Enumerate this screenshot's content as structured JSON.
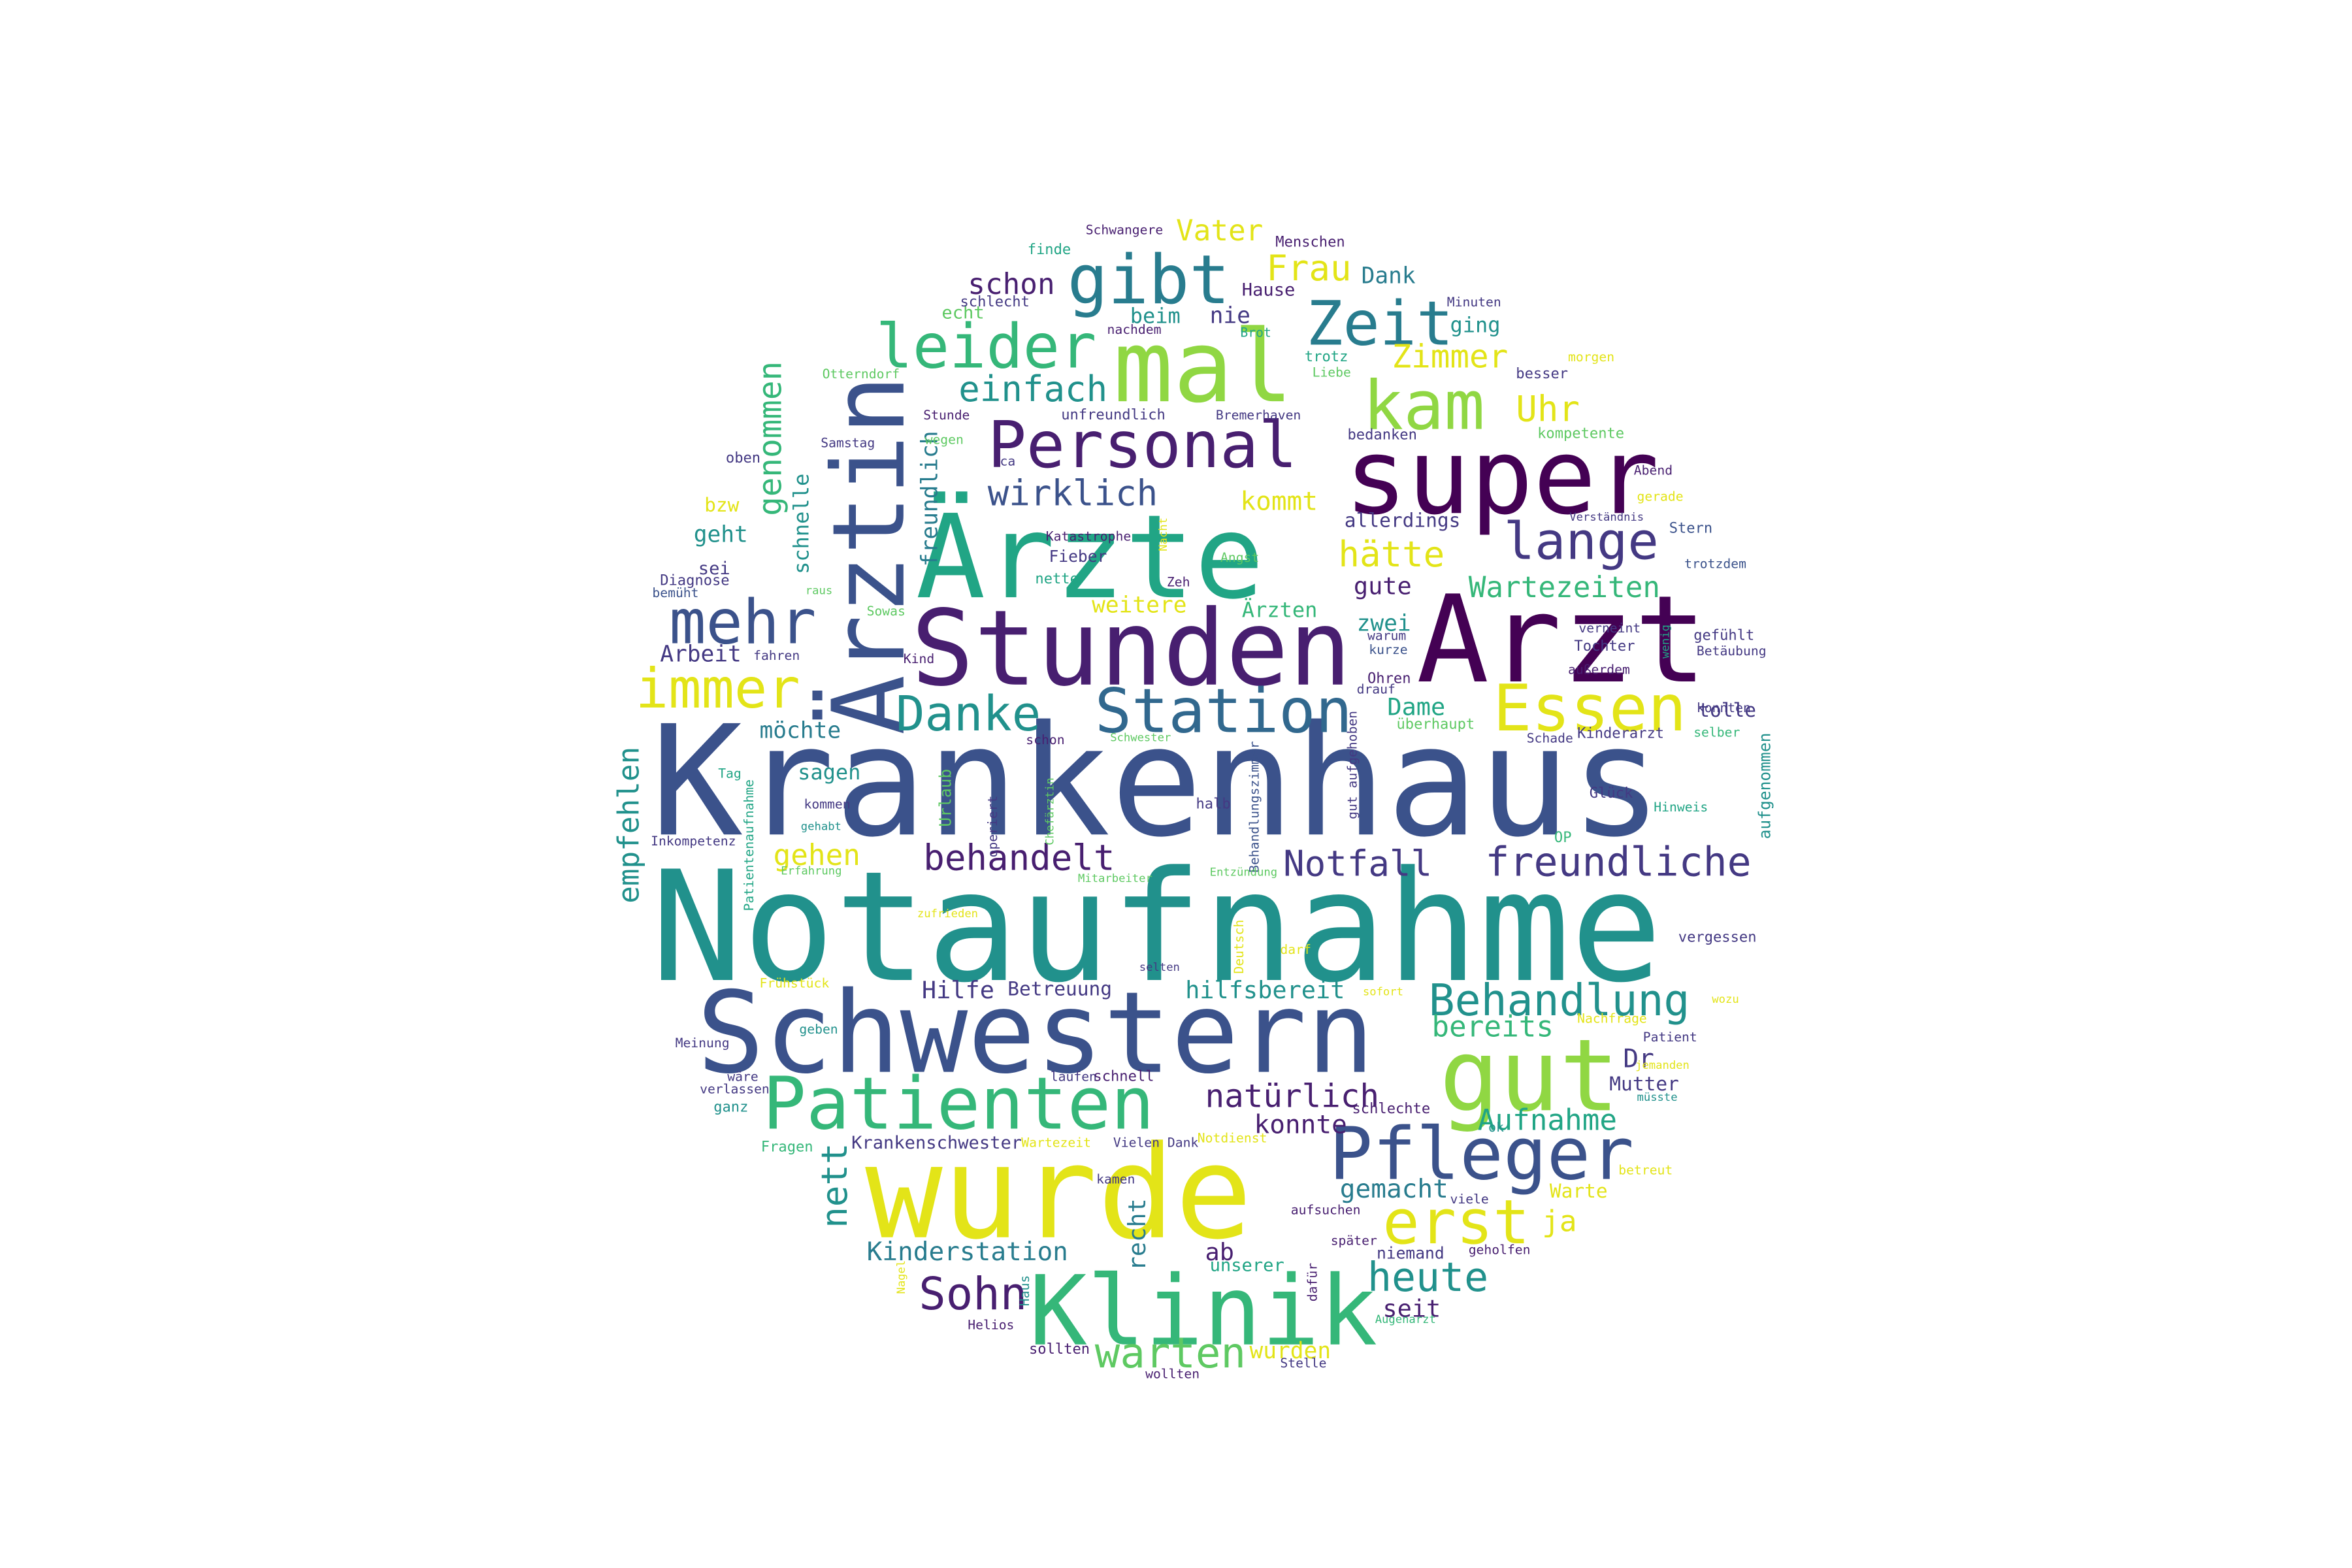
{
  "word_cloud": {
    "colors": {
      "yellow": "#e3e418",
      "lime": "#90d743",
      "lightgreen": "#5ec962",
      "green": "#35b779",
      "seagreen": "#21a585",
      "teal": "#21918c",
      "cyan": "#287c8e",
      "blue": "#31688e",
      "navy": "#3b528b",
      "indigo": "#443983",
      "purple": "#481f70",
      "dark": "#440154"
    },
    "words": [
      {
        "text": "Notaufnahme",
        "color": "teal"
      },
      {
        "text": "Krankenhaus",
        "color": "navy"
      },
      {
        "text": "Schwestern",
        "color": "navy"
      },
      {
        "text": "wurde",
        "color": "yellow"
      },
      {
        "text": "Ärzte",
        "color": "seagreen"
      },
      {
        "text": "Arzt",
        "color": "dark"
      },
      {
        "text": "Stunden",
        "color": "purple"
      },
      {
        "text": "super",
        "color": "dark"
      },
      {
        "text": "Ärztin",
        "color": "navy"
      },
      {
        "text": "Klinik",
        "color": "green"
      },
      {
        "text": "mal",
        "color": "lime"
      },
      {
        "text": "gut",
        "color": "lime"
      },
      {
        "text": "Patienten",
        "color": "green"
      },
      {
        "text": "Pfleger",
        "color": "navy"
      },
      {
        "text": "Personal",
        "color": "purple"
      },
      {
        "text": "Station",
        "color": "blue"
      },
      {
        "text": "gibt",
        "color": "cyan"
      },
      {
        "text": "kam",
        "color": "lime"
      },
      {
        "text": "Essen",
        "color": "yellow"
      },
      {
        "text": "Zeit",
        "color": "cyan"
      },
      {
        "text": "leider",
        "color": "green"
      },
      {
        "text": "mehr",
        "color": "navy"
      },
      {
        "text": "immer",
        "color": "yellow"
      },
      {
        "text": "Danke",
        "color": "teal"
      },
      {
        "text": "lange",
        "color": "indigo"
      },
      {
        "text": "Behandlung",
        "color": "teal"
      },
      {
        "text": "erst",
        "color": "yellow"
      },
      {
        "text": "Sohn",
        "color": "purple"
      },
      {
        "text": "heute",
        "color": "teal"
      },
      {
        "text": "warten",
        "color": "lightgreen"
      },
      {
        "text": "freundliche",
        "color": "indigo"
      },
      {
        "text": "Notfall",
        "color": "indigo"
      },
      {
        "text": "behandelt",
        "color": "purple"
      },
      {
        "text": "einfach",
        "color": "teal"
      },
      {
        "text": "wirklich",
        "color": "navy"
      },
      {
        "text": "Uhr",
        "color": "yellow"
      },
      {
        "text": "Frau",
        "color": "yellow"
      },
      {
        "text": "Vater",
        "color": "yellow"
      },
      {
        "text": "Zimmer",
        "color": "yellow"
      },
      {
        "text": "natürlich",
        "color": "purple"
      },
      {
        "text": "nett",
        "color": "teal"
      },
      {
        "text": "genommen",
        "color": "green"
      },
      {
        "text": "empfehlen",
        "color": "teal"
      },
      {
        "text": "hätte",
        "color": "yellow"
      },
      {
        "text": "kommt",
        "color": "yellow"
      },
      {
        "text": "Wartezeiten",
        "color": "green"
      },
      {
        "text": "schon",
        "color": "purple"
      },
      {
        "text": "Aufnahme",
        "color": "seagreen"
      },
      {
        "text": "Kinderstation",
        "color": "cyan"
      },
      {
        "text": "gehen",
        "color": "yellow"
      },
      {
        "text": "Hilfe",
        "color": "indigo"
      },
      {
        "text": "hilfsbereit",
        "color": "teal"
      },
      {
        "text": "bereits",
        "color": "green"
      },
      {
        "text": "gemacht",
        "color": "cyan"
      },
      {
        "text": "konnte",
        "color": "purple"
      },
      {
        "text": "wurden",
        "color": "yellow"
      },
      {
        "text": "ja",
        "color": "yellow"
      },
      {
        "text": "Dr",
        "color": "indigo"
      },
      {
        "text": "seit",
        "color": "purple"
      },
      {
        "text": "ab",
        "color": "purple"
      },
      {
        "text": "recht",
        "color": "cyan"
      },
      {
        "text": "möchte",
        "color": "cyan"
      },
      {
        "text": "freundlich",
        "color": "cyan"
      },
      {
        "text": "Dame",
        "color": "seagreen"
      },
      {
        "text": "gute",
        "color": "purple"
      },
      {
        "text": "Dank",
        "color": "cyan"
      },
      {
        "text": "Betreuung",
        "color": "indigo"
      },
      {
        "text": "weitere",
        "color": "yellow"
      },
      {
        "text": "Ärzten",
        "color": "green"
      },
      {
        "text": "Arbeit",
        "color": "indigo"
      },
      {
        "text": "geht",
        "color": "teal"
      },
      {
        "text": "schnelle",
        "color": "teal"
      },
      {
        "text": "zwei",
        "color": "teal"
      },
      {
        "text": "sagen",
        "color": "teal"
      },
      {
        "text": "beim",
        "color": "teal"
      },
      {
        "text": "nie",
        "color": "indigo"
      },
      {
        "text": "ging",
        "color": "teal"
      },
      {
        "text": "Hause",
        "color": "purple"
      },
      {
        "text": "allerdings",
        "color": "indigo"
      },
      {
        "text": "Mutter",
        "color": "indigo"
      },
      {
        "text": "Warte",
        "color": "yellow"
      },
      {
        "text": "tolle",
        "color": "indigo"
      },
      {
        "text": "Krankenschwester",
        "color": "indigo"
      },
      {
        "text": "unserer",
        "color": "seagreen"
      },
      {
        "text": "niemand",
        "color": "indigo"
      },
      {
        "text": "bzw",
        "color": "yellow"
      },
      {
        "text": "sei",
        "color": "indigo"
      },
      {
        "text": "Urlaub",
        "color": "lightgreen"
      },
      {
        "text": "Menschen",
        "color": "purple"
      },
      {
        "text": "finde",
        "color": "seagreen"
      },
      {
        "text": "Schwangere",
        "color": "purple"
      },
      {
        "text": "echt",
        "color": "lightgreen"
      },
      {
        "text": "schlecht",
        "color": "indigo"
      },
      {
        "text": "nachdem",
        "color": "purple"
      },
      {
        "text": "Brot",
        "color": "seagreen"
      },
      {
        "text": "Minuten",
        "color": "indigo"
      },
      {
        "text": "trotz",
        "color": "seagreen"
      },
      {
        "text": "Liebe",
        "color": "lightgreen"
      },
      {
        "text": "morgen",
        "color": "yellow"
      },
      {
        "text": "besser",
        "color": "indigo"
      },
      {
        "text": "Otterndorf",
        "color": "lightgreen"
      },
      {
        "text": "Stunde",
        "color": "purple"
      },
      {
        "text": "unfreundlich",
        "color": "indigo"
      },
      {
        "text": "Bremerhaven",
        "color": "indigo"
      },
      {
        "text": "kompetente",
        "color": "lightgreen"
      },
      {
        "text": "wegen",
        "color": "lightgreen"
      },
      {
        "text": "Samstag",
        "color": "indigo"
      },
      {
        "text": "ca",
        "color": "indigo"
      },
      {
        "text": "bedanken",
        "color": "indigo"
      },
      {
        "text": "oben",
        "color": "indigo"
      },
      {
        "text": "Abend",
        "color": "purple"
      },
      {
        "text": "gerade",
        "color": "yellow"
      },
      {
        "text": "Verständnis",
        "color": "indigo"
      },
      {
        "text": "Stern",
        "color": "navy"
      },
      {
        "text": "trotzdem",
        "color": "navy"
      },
      {
        "text": "Katastrophe",
        "color": "purple"
      },
      {
        "text": "Nacht",
        "color": "yellow"
      },
      {
        "text": "Angst",
        "color": "lightgreen"
      },
      {
        "text": "Fieber",
        "color": "indigo"
      },
      {
        "text": "nette",
        "color": "seagreen"
      },
      {
        "text": "Zeh",
        "color": "purple"
      },
      {
        "text": "Diagnose",
        "color": "indigo"
      },
      {
        "text": "bemüht",
        "color": "navy"
      },
      {
        "text": "raus",
        "color": "lightgreen"
      },
      {
        "text": "Sowas",
        "color": "lightgreen"
      },
      {
        "text": "fahren",
        "color": "indigo"
      },
      {
        "text": "Kind",
        "color": "purple"
      },
      {
        "text": "verneint",
        "color": "indigo"
      },
      {
        "text": "warum",
        "color": "indigo"
      },
      {
        "text": "kurze",
        "color": "navy"
      },
      {
        "text": "Tochter",
        "color": "indigo"
      },
      {
        "text": "außerdem",
        "color": "purple"
      },
      {
        "text": "gefühlt",
        "color": "indigo"
      },
      {
        "text": "Betäubung",
        "color": "indigo"
      },
      {
        "text": "wenig",
        "color": "seagreen"
      },
      {
        "text": "Ohren",
        "color": "purple"
      },
      {
        "text": "drauf",
        "color": "indigo"
      },
      {
        "text": "überhaupt",
        "color": "lightgreen"
      },
      {
        "text": "konnten",
        "color": "indigo"
      },
      {
        "text": "selber",
        "color": "green"
      },
      {
        "text": "Tag",
        "color": "seagreen"
      },
      {
        "text": "schon",
        "color": "purple"
      },
      {
        "text": "Schwester",
        "color": "lightgreen"
      },
      {
        "text": "Schade",
        "color": "indigo"
      },
      {
        "text": "Kinderarzt",
        "color": "indigo"
      },
      {
        "text": "kommen",
        "color": "indigo"
      },
      {
        "text": "gehabt",
        "color": "teal"
      },
      {
        "text": "Patientenaufnahme",
        "color": "seagreen"
      },
      {
        "text": "operiert",
        "color": "indigo"
      },
      {
        "text": "Chefärztin",
        "color": "lightgreen"
      },
      {
        "text": "Behandlungszimmer",
        "color": "navy"
      },
      {
        "text": "gut aufgehoben",
        "color": "indigo"
      },
      {
        "text": "halb",
        "color": "indigo"
      },
      {
        "text": "Glück",
        "color": "indigo"
      },
      {
        "text": "Hinweis",
        "color": "seagreen"
      },
      {
        "text": "aufgenommen",
        "color": "teal"
      },
      {
        "text": "Inkompetenz",
        "color": "indigo"
      },
      {
        "text": "Erfahrung",
        "color": "lightgreen"
      },
      {
        "text": "Mitarbeiter",
        "color": "lightgreen"
      },
      {
        "text": "Entzündung",
        "color": "lightgreen"
      },
      {
        "text": "OP",
        "color": "green"
      },
      {
        "text": "zufrieden",
        "color": "yellow"
      },
      {
        "text": "Deutsch",
        "color": "yellow"
      },
      {
        "text": "darf",
        "color": "yellow"
      },
      {
        "text": "vergessen",
        "color": "indigo"
      },
      {
        "text": "selten",
        "color": "indigo"
      },
      {
        "text": "Frühstück",
        "color": "yellow"
      },
      {
        "text": "sofort",
        "color": "yellow"
      },
      {
        "text": "Nachfrage",
        "color": "yellow"
      },
      {
        "text": "wozu",
        "color": "yellow"
      },
      {
        "text": "geben",
        "color": "teal"
      },
      {
        "text": "Meinung",
        "color": "indigo"
      },
      {
        "text": "Patient",
        "color": "indigo"
      },
      {
        "text": "jemanden",
        "color": "yellow"
      },
      {
        "text": "wäre",
        "color": "indigo"
      },
      {
        "text": "verlassen",
        "color": "indigo"
      },
      {
        "text": "laufen",
        "color": "indigo"
      },
      {
        "text": "schnell",
        "color": "purple"
      },
      {
        "text": "müsste",
        "color": "teal"
      },
      {
        "text": "ganz",
        "color": "teal"
      },
      {
        "text": "schlechte",
        "color": "purple"
      },
      {
        "text": "Fragen",
        "color": "green"
      },
      {
        "text": "Wartezeit",
        "color": "yellow"
      },
      {
        "text": "Vielen Dank",
        "color": "indigo"
      },
      {
        "text": "Notdienst",
        "color": "yellow"
      },
      {
        "text": "ok",
        "color": "teal"
      },
      {
        "text": "kamen",
        "color": "indigo"
      },
      {
        "text": "betreut",
        "color": "yellow"
      },
      {
        "text": "viele",
        "color": "indigo"
      },
      {
        "text": "aufsuchen",
        "color": "purple"
      },
      {
        "text": "später",
        "color": "purple"
      },
      {
        "text": "geholfen",
        "color": "purple"
      },
      {
        "text": "Nagel",
        "color": "yellow"
      },
      {
        "text": "Haus",
        "color": "teal"
      },
      {
        "text": "dafür",
        "color": "purple"
      },
      {
        "text": "Augenarzt",
        "color": "green"
      },
      {
        "text": "Helios",
        "color": "purple"
      },
      {
        "text": "sollten",
        "color": "purple"
      },
      {
        "text": "Stelle",
        "color": "indigo"
      },
      {
        "text": "wollten",
        "color": "purple"
      }
    ]
  }
}
